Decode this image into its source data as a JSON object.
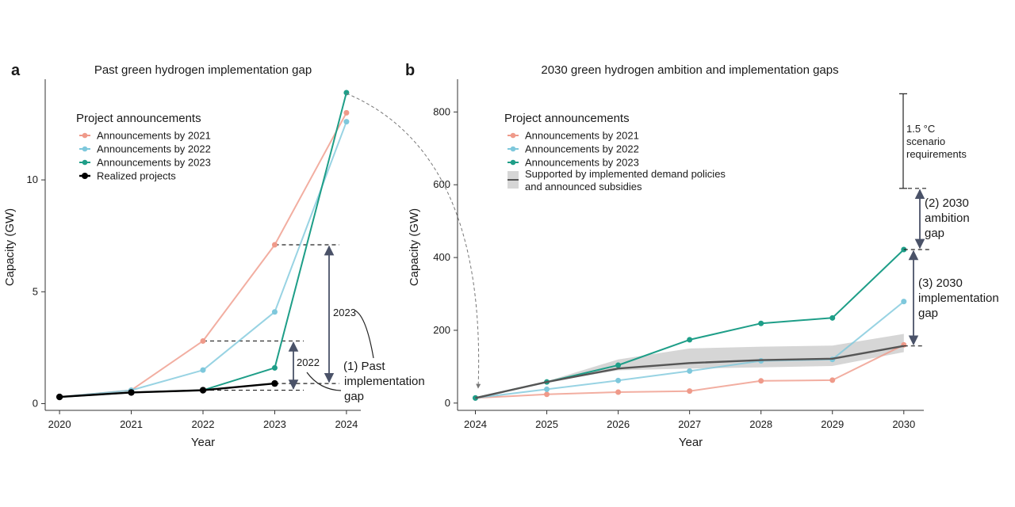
{
  "colors": {
    "ann2021": "#ef9a8a",
    "ann2022": "#7ec8dc",
    "ann2023": "#1e9e88",
    "realized": "#000000",
    "supported": "#555555",
    "band": "#d6d6d6",
    "arrow": "#4a5268"
  },
  "chart_data": [
    {
      "panel": "a",
      "type": "line",
      "title": "Past green hydrogen implementation gap",
      "xlabel": "Year",
      "ylabel": "Capacity (GW)",
      "x": [
        2020,
        2021,
        2022,
        2023,
        2024
      ],
      "x_ticks": [
        "2020",
        "2021",
        "2022",
        "2023",
        "2024"
      ],
      "y_ticks": [
        "0",
        "5",
        "10"
      ],
      "xlim": [
        2019.8,
        2024.2
      ],
      "ylim": [
        -0.3,
        14.5
      ],
      "legend_title": "Project announcements",
      "legend_position": "top-left",
      "series": [
        {
          "key": "ann2021",
          "name": "Announcements by 2021",
          "points": [
            [
              2020,
              0.3
            ],
            [
              2021,
              0.6
            ],
            [
              2022,
              2.8
            ],
            [
              2023,
              7.1
            ],
            [
              2024,
              13.0
            ]
          ]
        },
        {
          "key": "ann2022",
          "name": "Announcements by 2022",
          "points": [
            [
              2020,
              0.3
            ],
            [
              2021,
              0.6
            ],
            [
              2022,
              1.5
            ],
            [
              2023,
              4.1
            ],
            [
              2024,
              12.6
            ]
          ]
        },
        {
          "key": "ann2023",
          "name": "Announcements by 2023",
          "points": [
            [
              2020,
              0.3
            ],
            [
              2021,
              0.5
            ],
            [
              2022,
              0.6
            ],
            [
              2023,
              1.6
            ],
            [
              2024,
              13.9
            ]
          ]
        },
        {
          "key": "realized",
          "name": "Realized projects",
          "points": [
            [
              2020,
              0.3
            ],
            [
              2021,
              0.5
            ],
            [
              2022,
              0.6
            ],
            [
              2023,
              0.9
            ]
          ]
        }
      ],
      "annotations": {
        "label_2023": "2023",
        "label_2022": "2022",
        "gap_label_lines": [
          "(1) Past",
          "implementation",
          "gap"
        ]
      }
    },
    {
      "panel": "b",
      "type": "line",
      "title": "2030 green hydrogen ambition and implementation gaps",
      "xlabel": "Year",
      "ylabel": "Capacity (GW)",
      "x": [
        2024,
        2025,
        2026,
        2027,
        2028,
        2029,
        2030
      ],
      "x_ticks": [
        "2024",
        "2025",
        "2026",
        "2027",
        "2028",
        "2029",
        "2030"
      ],
      "y_ticks": [
        "0",
        "200",
        "400",
        "600",
        "800"
      ],
      "xlim": [
        2023.75,
        2030.28
      ],
      "ylim": [
        -20,
        890
      ],
      "legend_title": "Project announcements",
      "legend_position": "top-left",
      "series": [
        {
          "key": "ann2021",
          "name": "Announcements by 2021",
          "points": [
            [
              2024,
              14
            ],
            [
              2025,
              24
            ],
            [
              2026,
              30
            ],
            [
              2027,
              33
            ],
            [
              2028,
              61
            ],
            [
              2029,
              63
            ],
            [
              2030,
              160
            ]
          ]
        },
        {
          "key": "ann2022",
          "name": "Announcements by 2022",
          "points": [
            [
              2024,
              14
            ],
            [
              2025,
              38
            ],
            [
              2026,
              62
            ],
            [
              2027,
              88
            ],
            [
              2028,
              116
            ],
            [
              2029,
              120
            ],
            [
              2030,
              279
            ]
          ]
        },
        {
          "key": "ann2023",
          "name": "Announcements by 2023",
          "points": [
            [
              2024,
              14
            ],
            [
              2025,
              58
            ],
            [
              2026,
              104
            ],
            [
              2027,
              174
            ],
            [
              2028,
              219
            ],
            [
              2029,
              234
            ],
            [
              2030,
              422
            ]
          ]
        }
      ],
      "supported": {
        "name_lines": [
          "Supported by implemented demand policies",
          "and announced subsidies"
        ],
        "points": [
          [
            2024,
            14
          ],
          [
            2025,
            58
          ],
          [
            2026,
            95
          ],
          [
            2027,
            110
          ],
          [
            2028,
            118
          ],
          [
            2029,
            122
          ],
          [
            2030,
            157
          ]
        ],
        "band_low": [
          [
            2024,
            14
          ],
          [
            2025,
            58
          ],
          [
            2026,
            90
          ],
          [
            2027,
            95
          ],
          [
            2028,
            98
          ],
          [
            2029,
            102
          ],
          [
            2030,
            140
          ]
        ],
        "band_high": [
          [
            2024,
            14
          ],
          [
            2025,
            60
          ],
          [
            2026,
            120
          ],
          [
            2027,
            150
          ],
          [
            2028,
            155
          ],
          [
            2029,
            158
          ],
          [
            2030,
            190
          ]
        ]
      },
      "scenario": {
        "range": [
          590,
          850
        ],
        "label_lines": [
          "1.5 °C",
          "scenario",
          "requirements"
        ]
      },
      "gaps": {
        "ambition": {
          "from": 422,
          "to": 590,
          "label_lines": [
            "(2) 2030",
            "ambition",
            "gap"
          ]
        },
        "implementation": {
          "from": 157,
          "to": 422,
          "label_lines": [
            "(3) 2030",
            "implementation",
            "gap"
          ]
        }
      }
    }
  ]
}
